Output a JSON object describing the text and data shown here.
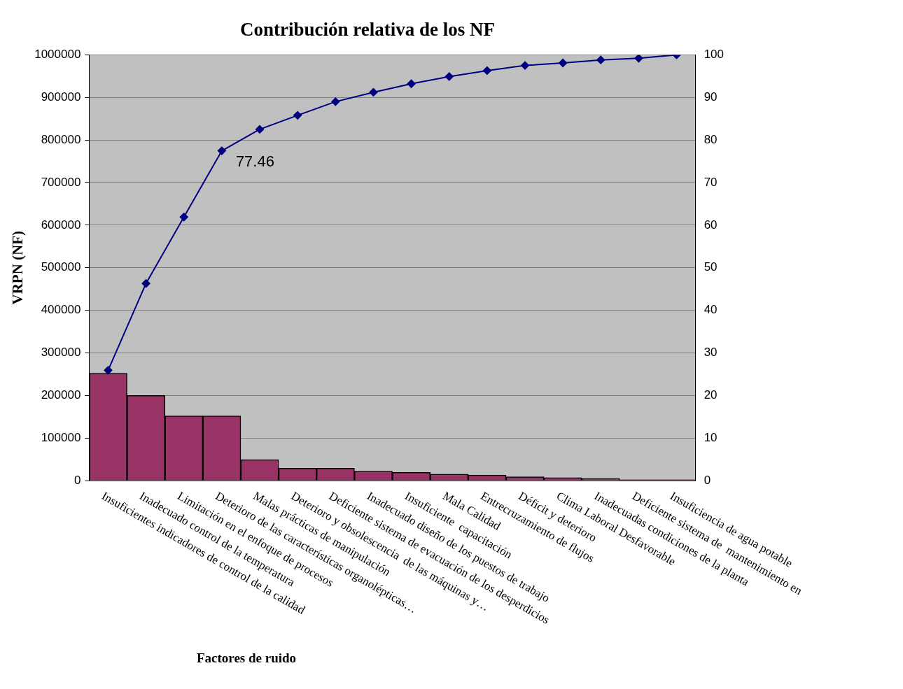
{
  "chart_data": {
    "type": "bar",
    "title": "Contribución relativa de los NF",
    "xlabel": "Factores de ruido",
    "ylabel": "VRPN (NF)",
    "categories": [
      "Insuficientes indicadores de control de la calidad",
      "Inadecuado control de la temperatura",
      "Limitación en el enfoque de procesos",
      "Deterioro de las características organolépticas…",
      "Malas prácticas de manipulación",
      "Deterioro y obsolescencia  de las máquinas y…",
      "Deficiente sistema de evacuación de los desperdicios",
      "Inadecuado diseño de los puestos de trabajo",
      "Insuficiente  capacitación",
      "Mala Calidad",
      "Entrecruzamiento de flujos",
      "Déficit y deterioro",
      "Clima Laboral Desfavorable",
      "Inadecuadas condiciones de la planta",
      "Deficiente sistema de  mantenimiento en",
      "Insuficiencia de agua potable"
    ],
    "series": [
      {
        "color": "#993366",
        "values": [
          252000,
          200000,
          152000,
          152000,
          49000,
          29000,
          29000,
          22000,
          19000,
          15000,
          13000,
          9000,
          7000,
          5000,
          2000,
          2000
        ]
      },
      {
        "type": "line",
        "axis": "y2",
        "color": "#000080",
        "values": [
          25.9,
          46.3,
          61.9,
          77.46,
          82.5,
          85.8,
          89.0,
          91.2,
          93.2,
          94.9,
          96.3,
          97.5,
          98.1,
          98.8,
          99.2,
          100
        ],
        "value_labels": [
          null,
          null,
          null,
          "77.46",
          null,
          null,
          null,
          null,
          null,
          null,
          null,
          null,
          null,
          null,
          null,
          null
        ]
      }
    ],
    "ylim": [
      0,
      1000000
    ],
    "yticks": [
      0,
      100000,
      200000,
      300000,
      400000,
      500000,
      600000,
      700000,
      800000,
      900000,
      1000000
    ],
    "y2lim": [
      0,
      100
    ],
    "y2ticks": [
      0,
      10,
      20,
      30,
      40,
      50,
      60,
      70,
      80,
      90,
      100
    ],
    "grid": "y",
    "legend": false,
    "marker": "diamond",
    "line_style": "solid"
  }
}
